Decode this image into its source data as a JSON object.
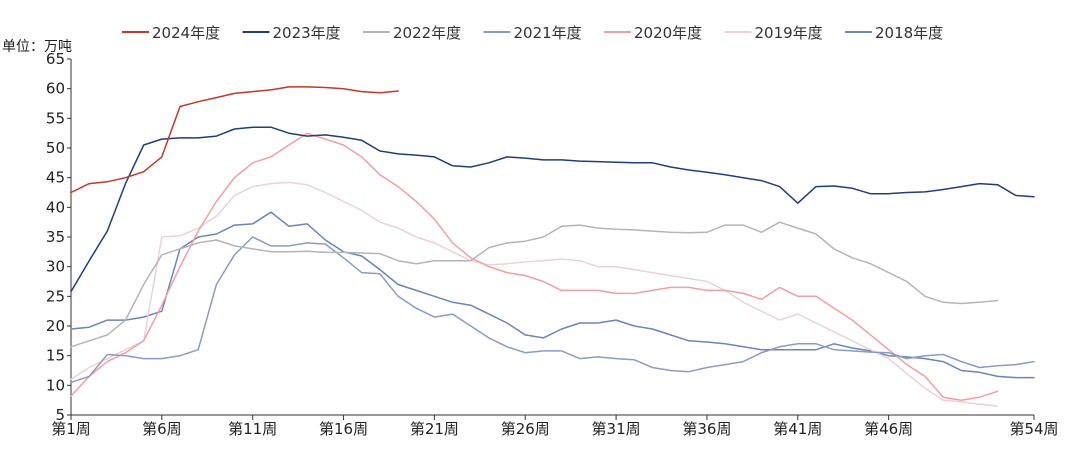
{
  "chart_data": {
    "type": "line",
    "unit_label": "单位：万吨",
    "ylim": [
      5,
      65
    ],
    "yticks": [
      5,
      10,
      15,
      20,
      25,
      30,
      35,
      40,
      45,
      50,
      55,
      60,
      65
    ],
    "xlim": [
      1,
      54
    ],
    "xticks": [
      {
        "x": 1,
        "label": "第1周"
      },
      {
        "x": 6,
        "label": "第6周"
      },
      {
        "x": 11,
        "label": "第11周"
      },
      {
        "x": 16,
        "label": "第16周"
      },
      {
        "x": 21,
        "label": "第21周"
      },
      {
        "x": 26,
        "label": "第26周"
      },
      {
        "x": 31,
        "label": "第31周"
      },
      {
        "x": 36,
        "label": "第36周"
      },
      {
        "x": 41,
        "label": "第41周"
      },
      {
        "x": 46,
        "label": "第46周"
      },
      {
        "x": 54,
        "label": "第54周"
      }
    ],
    "grid": false,
    "legend_position": "top",
    "series": [
      {
        "name": "2024年度",
        "color": "#c0392b",
        "values": [
          42.5,
          44.0,
          44.3,
          45.0,
          46.0,
          48.5,
          57.0,
          57.8,
          58.5,
          59.2,
          59.5,
          59.8,
          60.3,
          60.3,
          60.2,
          60.0,
          59.5,
          59.3,
          59.6
        ]
      },
      {
        "name": "2023年度",
        "color": "#1f3f7a",
        "values": [
          25.8,
          31.0,
          36.0,
          44.0,
          50.5,
          51.5,
          51.7,
          51.7,
          52.0,
          53.2,
          53.5,
          53.5,
          52.5,
          52.0,
          52.2,
          51.8,
          51.3,
          49.5,
          49.0,
          48.8,
          48.5,
          47.0,
          46.8,
          47.5,
          48.5,
          48.3,
          48.0,
          48.0,
          47.8,
          47.7,
          47.6,
          47.5,
          47.5,
          46.8,
          46.3,
          45.9,
          45.5,
          45.0,
          44.5,
          43.5,
          40.7,
          43.5,
          43.6,
          43.2,
          42.3,
          42.3,
          42.5,
          42.6,
          43.0,
          43.5,
          44.0,
          43.8,
          42.0,
          41.8
        ]
      },
      {
        "name": "2022年度",
        "color": "#b5b5b5",
        "values": [
          16.5,
          17.5,
          18.5,
          21.0,
          27.0,
          32.0,
          33.0,
          34.0,
          34.5,
          33.5,
          33.0,
          32.5,
          32.5,
          32.6,
          32.4,
          32.4,
          32.3,
          32.2,
          31.0,
          30.5,
          31.0,
          31.0,
          31.0,
          33.2,
          34.0,
          34.3,
          35.0,
          36.8,
          37.0,
          36.5,
          36.3,
          36.2,
          36.0,
          35.8,
          35.7,
          35.8,
          37.0,
          37.0,
          35.8,
          37.5,
          36.5,
          35.5,
          33.0,
          31.5,
          30.5,
          29.0,
          27.5,
          25.0,
          24.0,
          23.8,
          24.0,
          24.3
        ]
      },
      {
        "name": "2021年度",
        "color": "#8a9cc4",
        "values": [
          10.5,
          11.5,
          15.2,
          15.0,
          14.5,
          14.5,
          15.0,
          16.0,
          27.0,
          32.0,
          35.0,
          33.5,
          33.5,
          34.0,
          33.8,
          31.5,
          29.0,
          28.8,
          25.0,
          23.0,
          21.5,
          22.0,
          20.0,
          18.0,
          16.5,
          15.5,
          15.8,
          15.8,
          14.5,
          14.8,
          14.5,
          14.3,
          13.0,
          12.5,
          12.3,
          13.0,
          13.5,
          14.0,
          15.5,
          16.5,
          17.0,
          17.0,
          16.0,
          15.8,
          15.6,
          15.5,
          14.5,
          15.0,
          15.2,
          14.0,
          13.0,
          13.3,
          13.5,
          14.0
        ]
      },
      {
        "name": "2020年度",
        "color": "#f0a0a5",
        "values": [
          8.2,
          11.5,
          14.0,
          15.5,
          17.5,
          23.5,
          30.0,
          36.0,
          41.0,
          45.0,
          47.5,
          48.5,
          50.5,
          52.5,
          51.5,
          50.5,
          48.5,
          45.5,
          43.5,
          41.0,
          38.0,
          34.0,
          31.5,
          30.0,
          29.0,
          28.5,
          27.5,
          26.0,
          26.0,
          26.0,
          25.5,
          25.5,
          26.0,
          26.5,
          26.5,
          26.0,
          26.0,
          25.5,
          24.5,
          26.5,
          25.0,
          25.0,
          23.0,
          21.0,
          18.5,
          16.0,
          13.5,
          11.5,
          8.0,
          7.5,
          8.0,
          9.0
        ]
      },
      {
        "name": "2019年度",
        "color": "#ecd2d6",
        "values": [
          11.0,
          13.0,
          14.5,
          16.0,
          17.5,
          35.0,
          35.2,
          36.5,
          38.5,
          42.0,
          43.5,
          44.0,
          44.2,
          43.8,
          42.5,
          41.0,
          39.5,
          37.5,
          36.5,
          35.0,
          34.0,
          32.5,
          31.0,
          30.3,
          30.5,
          30.8,
          31.0,
          31.3,
          31.0,
          30.0,
          30.0,
          29.5,
          29.0,
          28.5,
          28.0,
          27.5,
          26.0,
          24.0,
          22.5,
          21.0,
          22.0,
          20.5,
          19.0,
          17.5,
          16.0,
          14.5,
          12.0,
          9.5,
          7.5,
          7.2,
          6.8,
          6.5
        ]
      },
      {
        "name": "2018年度",
        "color": "#6a85b8",
        "values": [
          19.5,
          19.8,
          21.0,
          21.0,
          21.5,
          22.5,
          33.0,
          35.0,
          35.5,
          37.0,
          37.2,
          39.2,
          36.8,
          37.2,
          34.5,
          32.5,
          31.8,
          29.5,
          27.0,
          26.0,
          25.0,
          24.0,
          23.5,
          22.0,
          20.5,
          18.5,
          18.0,
          19.5,
          20.5,
          20.5,
          21.0,
          20.0,
          19.5,
          18.5,
          17.5,
          17.3,
          17.0,
          16.5,
          16.0,
          16.0,
          16.0,
          16.0,
          17.0,
          16.3,
          15.8,
          15.0,
          14.8,
          14.5,
          14.0,
          12.5,
          12.2,
          11.5,
          11.3,
          11.3
        ]
      }
    ]
  }
}
